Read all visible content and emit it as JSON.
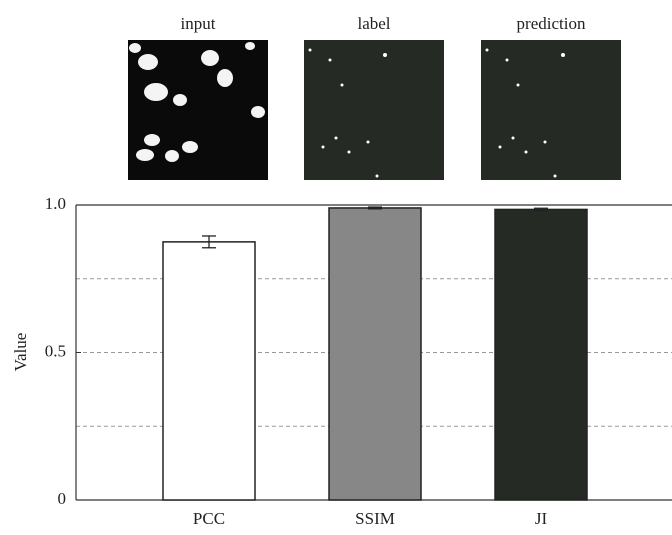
{
  "panels": [
    "input",
    "label",
    "prediction"
  ],
  "chart_data": {
    "type": "bar",
    "ylabel": "Value",
    "categories": [
      "PCC",
      "SSIM",
      "JI"
    ],
    "values": [
      0.875,
      0.99,
      0.985
    ],
    "errors": [
      0.02,
      0.003,
      0.004
    ],
    "colors": [
      "#ffffff",
      "#878787",
      "#252a25"
    ],
    "ylim": [
      0,
      1
    ],
    "yticks": [
      0,
      0.5,
      {
        "value": 1,
        "label": "1.0"
      }
    ],
    "grid_values": [
      0.25,
      0.5,
      0.75
    ],
    "grid": true
  }
}
